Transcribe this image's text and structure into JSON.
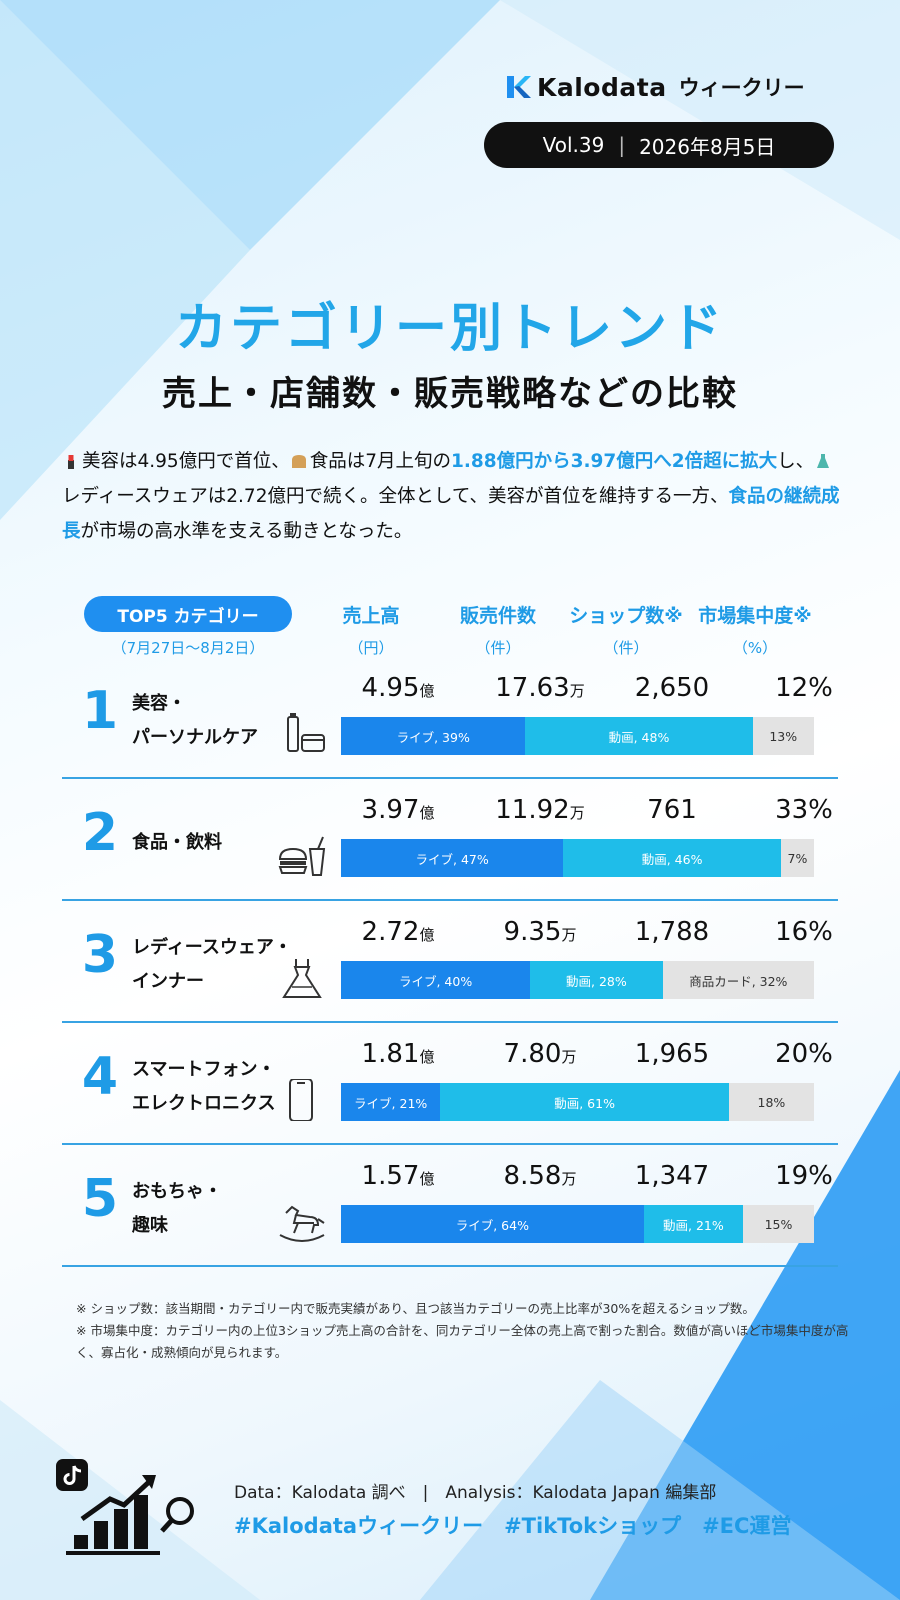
{
  "header": {
    "brand": "Kalodata",
    "brand_sub": "ウィークリー",
    "volume": "Vol.39",
    "separator": "|",
    "date": "2026年8月5日"
  },
  "title": "カテゴリー別トレンド",
  "subtitle": "売上・店舗数・販売戦略などの比較",
  "summary": {
    "icons": [
      "lipstick-icon",
      "bread-icon",
      "dress-icon"
    ],
    "p1": "美容は4.95億円で首位、",
    "p2": "食品は7月上旬の",
    "h1": "1.88億円から3.97億円へ2倍超に拡大",
    "p3": "し、",
    "p4": "レディースウェアは2.72億円で続く。全体として、美容が首位を維持する一方、",
    "h2": "食品の継続成長",
    "p5": "が市場の高水準を支える動きとなった。"
  },
  "table": {
    "label": "TOP5 カテゴリー",
    "period": "（7月27日〜8月2日）"
  },
  "chart_data": {
    "type": "table",
    "columns": [
      {
        "label": "売上高",
        "unit": "（円）"
      },
      {
        "label": "販売件数",
        "unit": "（件）"
      },
      {
        "label": "ショップ数※",
        "unit": "（件）"
      },
      {
        "label": "市場集中度※",
        "unit": "（%）"
      }
    ],
    "rows": [
      {
        "rank": "1",
        "category": [
          "美容・",
          "パーソナルケア"
        ],
        "icon": "cosmetics-icon",
        "sales": "4.95",
        "sales_unit": "億",
        "count": "17.63",
        "count_unit": "万",
        "shops": "2,650",
        "concentration": "12%",
        "mix": [
          {
            "label": "ライブ, 39%",
            "value": 39
          },
          {
            "label": "動画, 48%",
            "value": 48
          },
          {
            "label": "13%",
            "value": 13
          }
        ]
      },
      {
        "rank": "2",
        "category": [
          "食品・飲料"
        ],
        "icon": "burger-drink-icon",
        "sales": "3.97",
        "sales_unit": "億",
        "count": "11.92",
        "count_unit": "万",
        "shops": "761",
        "concentration": "33%",
        "mix": [
          {
            "label": "ライブ, 47%",
            "value": 47
          },
          {
            "label": "動画, 46%",
            "value": 46
          },
          {
            "label": "7%",
            "value": 7
          }
        ]
      },
      {
        "rank": "3",
        "category": [
          "レディースウェア・",
          "インナー"
        ],
        "icon": "dress-icon",
        "sales": "2.72",
        "sales_unit": "億",
        "count": "9.35",
        "count_unit": "万",
        "shops": "1,788",
        "concentration": "16%",
        "mix": [
          {
            "label": "ライブ, 40%",
            "value": 40
          },
          {
            "label": "動画, 28%",
            "value": 28
          },
          {
            "label": "商品カード, 32%",
            "value": 32
          }
        ]
      },
      {
        "rank": "4",
        "category": [
          "スマートフォン・",
          "エレクトロニクス"
        ],
        "icon": "smartphone-icon",
        "sales": "1.81",
        "sales_unit": "億",
        "count": "7.80",
        "count_unit": "万",
        "shops": "1,965",
        "concentration": "20%",
        "mix": [
          {
            "label": "ライブ, 21%",
            "value": 21
          },
          {
            "label": "動画, 61%",
            "value": 61
          },
          {
            "label": "18%",
            "value": 18
          }
        ]
      },
      {
        "rank": "5",
        "category": [
          "おもちゃ・",
          "趣味"
        ],
        "icon": "rocking-horse-icon",
        "sales": "1.57",
        "sales_unit": "億",
        "count": "8.58",
        "count_unit": "万",
        "shops": "1,347",
        "concentration": "19%",
        "mix": [
          {
            "label": "ライブ, 64%",
            "value": 64
          },
          {
            "label": "動画, 21%",
            "value": 21
          },
          {
            "label": "15%",
            "value": 15
          }
        ]
      }
    ],
    "colors": [
      "#1a86ec",
      "#1fbde9",
      "#e3e3e3"
    ]
  },
  "notes": [
    "※ ショップ数：該当期間・カテゴリー内で販売実績があり、且つ該当カテゴリーの売上比率が30%を超えるショップ数。",
    "※ 市場集中度：カテゴリー内の上位3ショップ売上高の合計を、同カテゴリー全体の売上高で割った割合。数値が高いほど市場集中度が高く、寡占化・成熟傾向が見られます。"
  ],
  "footer": {
    "source": "Data：Kalodata 調べ　|　Analysis：Kalodata Japan 編集部",
    "tags": "#Kalodataウィークリー　#TikTokショップ　#EC運営"
  }
}
